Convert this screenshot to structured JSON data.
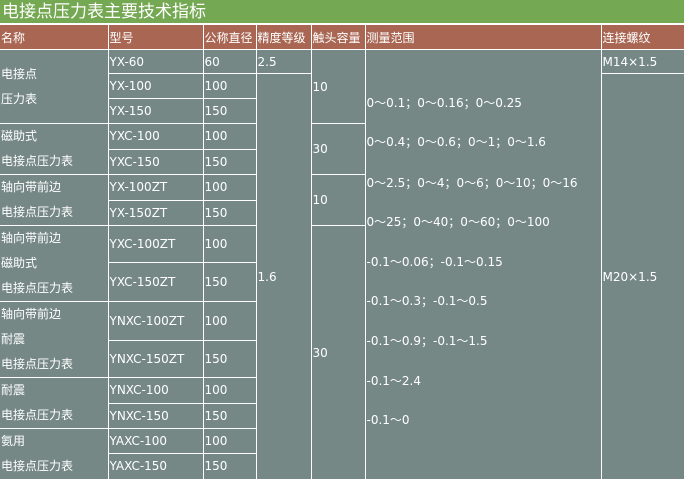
{
  "title": "电接点压力表主要技术指标",
  "headers": [
    "名称",
    "型号",
    "公称直径",
    "精度等级",
    "触头容量",
    "测量范围",
    "连接螺纹"
  ],
  "names": [
    [
      "电接点",
      "压力表"
    ],
    [
      "磁助式",
      "电接点压力表"
    ],
    [
      "轴向带前边",
      "电接点压力表"
    ],
    [
      "轴向带前边",
      "磁助式",
      "电接点压力表"
    ],
    [
      "轴向带前边",
      "耐震",
      "电接点压力表"
    ],
    [
      "耐震",
      "电接点压力表"
    ],
    [
      "氨用",
      "电接点压力表"
    ]
  ],
  "models": [
    "YX-60",
    "YX-100",
    "YX-150",
    "YXC-100",
    "YXC-150",
    "YX-100ZT",
    "YX-150ZT",
    "YXC-100ZT",
    "YXC-150ZT",
    "YNXC-100ZT",
    "YNXC-150ZT",
    "YNXC-100",
    "YNXC-150",
    "YAXC-100",
    "YAXC-150"
  ],
  "diameters": [
    "60",
    "100",
    "150",
    "100",
    "150",
    "100",
    "150",
    "100",
    "150",
    "100",
    "150",
    "100",
    "150",
    "100",
    "150"
  ],
  "precision": [
    "2.5",
    "1.6"
  ],
  "contact": [
    "10",
    "30",
    "10",
    "30"
  ],
  "ranges": [
    "0～0.1；0～0.16；0～0.25",
    "0～0.4；0～0.6；0～1；0～1.6",
    "0～2.5；0～4；0～6；0～10；0～16",
    "0～25；0～40；0～60；0～100",
    "-0.1～0.06；-0.1～0.15",
    "-0.1～0.3；-0.1～0.5",
    "-0.1～0.9；-0.1～1.5",
    "-0.1～2.4",
    "-0.1～0"
  ],
  "threads": [
    "M14×1.5",
    "M20×1.5"
  ]
}
